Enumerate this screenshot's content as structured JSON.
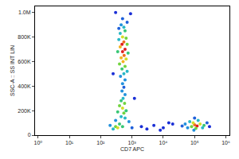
{
  "chart_data": {
    "type": "scatter",
    "x_label": "CD7 APC",
    "y_label": "SSC-A :: SS INT LIN",
    "log": "x",
    "grid": false,
    "xlim": [
      0.8,
      1300000
    ],
    "ylim": [
      0,
      1050000
    ],
    "xticks": [
      {
        "value": 1,
        "label": "10⁰"
      },
      {
        "value": 10,
        "label": "10¹"
      },
      {
        "value": 100,
        "label": "10²"
      },
      {
        "value": 1000,
        "label": "10³"
      },
      {
        "value": 10000,
        "label": "10⁴"
      },
      {
        "value": 100000,
        "label": "10⁵"
      },
      {
        "value": 1000000,
        "label": "10⁶"
      }
    ],
    "yticks": [
      0,
      {
        "value": 200000,
        "label": "200K"
      },
      {
        "value": 400000,
        "label": "400K"
      },
      {
        "value": 600000,
        "label": "600K"
      },
      {
        "value": 800000,
        "label": "800K"
      },
      {
        "value": 1000000,
        "label": "1.0M"
      }
    ],
    "x": [
      500,
      450,
      550,
      600,
      420,
      500,
      650,
      380,
      550,
      480,
      700,
      420,
      600,
      500,
      350,
      750,
      560,
      450,
      650,
      520,
      400,
      600,
      480,
      700,
      550,
      430,
      600,
      500,
      550,
      480,
      600,
      520,
      450,
      580,
      400,
      500,
      650,
      350,
      550,
      450,
      600,
      300,
      800,
      400,
      300,
      350,
      250,
      500,
      200,
      1000,
      900,
      300,
      250,
      1200,
      700,
      380,
      2000,
      5000,
      10000,
      20000,
      3000,
      15000,
      8000,
      50000,
      80000,
      100000,
      120000,
      90000,
      150000,
      70000,
      200000,
      110000,
      130000,
      60000,
      250000,
      40000,
      180000,
      100000,
      300000,
      95000
    ],
    "values": [
      950000,
      900000,
      880000,
      850000,
      830000,
      800000,
      790000,
      780000,
      760000,
      740000,
      740000,
      720000,
      700000,
      680000,
      680000,
      670000,
      650000,
      630000,
      620000,
      600000,
      580000,
      560000,
      540000,
      520000,
      500000,
      480000,
      450000,
      420000,
      390000,
      360000,
      330000,
      300000,
      280000,
      260000,
      240000,
      220000,
      200000,
      190000,
      180000,
      150000,
      140000,
      120000,
      110000,
      90000,
      70000,
      60000,
      50000,
      70000,
      80000,
      60000,
      990000,
      1000000,
      500000,
      300000,
      920000,
      870000,
      70000,
      80000,
      60000,
      90000,
      50000,
      100000,
      40000,
      90000,
      70000,
      85000,
      75000,
      100000,
      90000,
      110000,
      80000,
      55000,
      120000,
      60000,
      100000,
      75000,
      60000,
      140000,
      70000,
      40000
    ],
    "density": [
      2,
      3,
      4,
      5,
      4,
      7,
      6,
      4,
      9,
      10,
      6,
      8,
      10,
      10,
      5,
      5,
      9,
      8,
      7,
      8,
      6,
      6,
      5,
      4,
      4,
      3,
      3,
      3,
      2,
      3,
      3,
      4,
      5,
      6,
      6,
      7,
      5,
      5,
      6,
      4,
      4,
      3,
      3,
      5,
      6,
      7,
      4,
      5,
      3,
      2,
      1,
      1,
      1,
      1,
      2,
      2,
      1,
      1,
      1,
      1,
      1,
      1,
      1,
      3,
      6,
      9,
      10,
      7,
      7,
      4,
      5,
      6,
      4,
      3,
      2,
      2,
      4,
      2,
      1,
      3
    ]
  }
}
